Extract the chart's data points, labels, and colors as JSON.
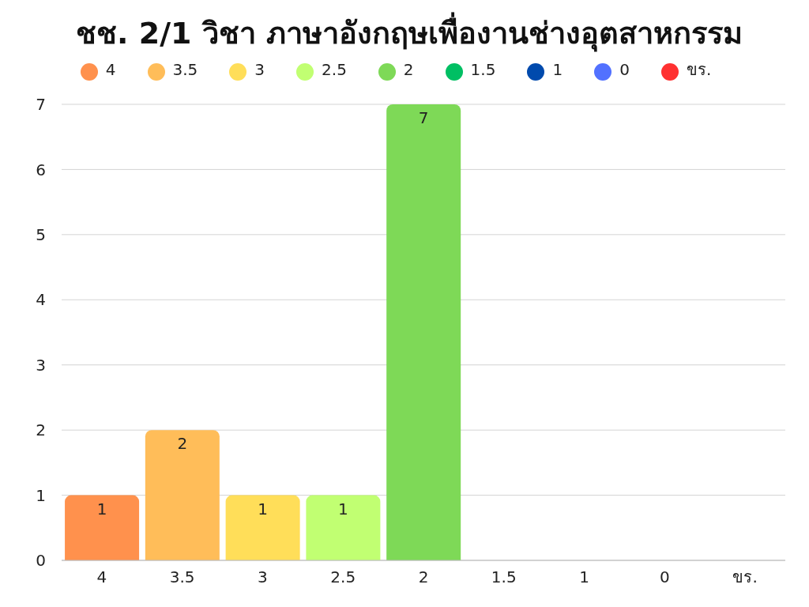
{
  "chart_data": {
    "type": "bar",
    "title": "ชช. 2/1 วิชา ภาษาอังกฤษเพื่องานช่างอุตสาหกรรม",
    "categories": [
      "4",
      "3.5",
      "3",
      "2.5",
      "2",
      "1.5",
      "1",
      "0",
      "ขร."
    ],
    "stacked": true,
    "series": [
      {
        "name": "4",
        "color": "#ff914d",
        "values": [
          1,
          null,
          null,
          null,
          null,
          null,
          null,
          null,
          null
        ],
        "value_labels": [
          "1",
          null,
          null,
          null,
          null,
          null,
          null,
          null,
          null
        ]
      },
      {
        "name": "3.5",
        "color": "#ffbd59",
        "values": [
          null,
          2,
          null,
          null,
          null,
          null,
          null,
          null,
          null
        ],
        "value_labels": [
          null,
          "2",
          null,
          null,
          null,
          null,
          null,
          null,
          null
        ]
      },
      {
        "name": "3",
        "color": "#ffde59",
        "values": [
          null,
          null,
          1,
          null,
          null,
          null,
          null,
          null,
          null
        ],
        "value_labels": [
          null,
          null,
          "1",
          null,
          null,
          null,
          null,
          null,
          null
        ]
      },
      {
        "name": "2.5",
        "color": "#c1ff72",
        "values": [
          null,
          null,
          null,
          1,
          null,
          null,
          null,
          null,
          null
        ],
        "value_labels": [
          null,
          null,
          null,
          "1",
          null,
          null,
          null,
          null,
          null
        ]
      },
      {
        "name": "2",
        "color": "#7ed957",
        "values": [
          null,
          null,
          null,
          null,
          7,
          null,
          null,
          null,
          null
        ],
        "value_labels": [
          null,
          null,
          null,
          null,
          "7",
          null,
          null,
          null,
          null
        ]
      },
      {
        "name": "1.5",
        "color": "#00bf63",
        "values": [
          null,
          null,
          null,
          null,
          null,
          0,
          null,
          null,
          null
        ]
      },
      {
        "name": "1",
        "color": "#004aad",
        "values": [
          null,
          null,
          null,
          null,
          null,
          null,
          0,
          null,
          null
        ]
      },
      {
        "name": "0",
        "color": "#5271ff",
        "values": [
          null,
          null,
          null,
          null,
          null,
          null,
          null,
          0,
          null
        ]
      },
      {
        "name": "ขร.",
        "color": "#ff3131",
        "values": [
          null,
          null,
          null,
          null,
          null,
          null,
          null,
          null,
          0
        ]
      }
    ],
    "ylim": [
      0,
      7
    ],
    "yticks": [
      0,
      1,
      2,
      3,
      4,
      5,
      6,
      7
    ],
    "grid": "y",
    "legend": "top"
  }
}
